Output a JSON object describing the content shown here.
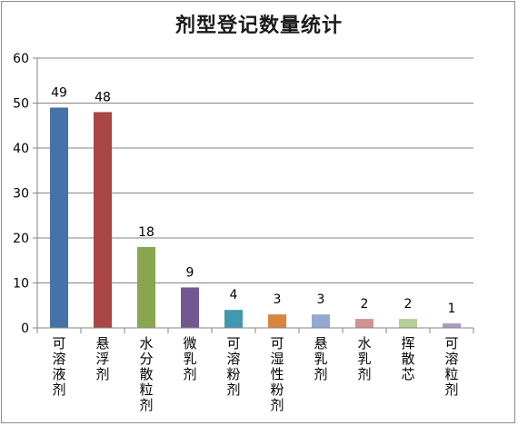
{
  "chart_data": {
    "type": "bar",
    "title": "剂型登记数量统计",
    "categories": [
      "可溶液剂",
      "悬浮剂",
      "水分散粒剂",
      "微乳剂",
      "可溶粉剂",
      "可湿性粉剂",
      "悬乳剂",
      "水乳剂",
      "挥散芯",
      "可溶粒剂"
    ],
    "values": [
      49,
      48,
      18,
      9,
      4,
      3,
      3,
      2,
      2,
      1
    ],
    "colors": [
      "#4572a7",
      "#aa4643",
      "#89a54e",
      "#71588f",
      "#4198af",
      "#db843d",
      "#93a9cf",
      "#d19392",
      "#b9cd96",
      "#a99bbd"
    ],
    "ylim": [
      0,
      60
    ],
    "yticks": [
      0,
      10,
      20,
      30,
      40,
      50,
      60
    ],
    "xlabel": "",
    "ylabel": "",
    "grid": true,
    "data_labels": true
  }
}
